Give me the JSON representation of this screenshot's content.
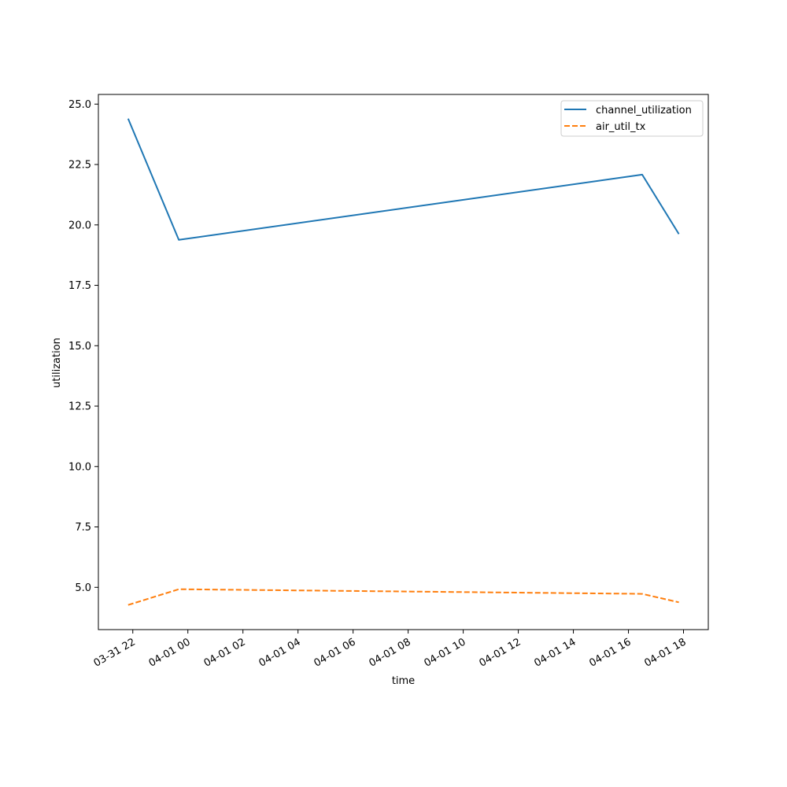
{
  "chart_data": {
    "type": "line",
    "title": "",
    "xlabel": "time",
    "ylabel": "utilization",
    "x": [
      "03-31 21:50",
      "03-31 23:40",
      "04-01 16:30",
      "04-01 17:50"
    ],
    "x_ticks": [
      "03-31 22",
      "04-01 00",
      "04-01 02",
      "04-01 04",
      "04-01 06",
      "04-01 08",
      "04-01 10",
      "04-01 12",
      "04-01 14",
      "04-01 16",
      "04-01 18"
    ],
    "x_tick_hours": [
      22,
      24,
      26,
      28,
      30,
      32,
      34,
      36,
      38,
      40,
      42
    ],
    "x_hours": [
      21.83,
      23.67,
      40.5,
      41.83
    ],
    "xlim_hours": [
      20.75,
      42.9
    ],
    "y_ticks": [
      "5.0",
      "7.5",
      "10.0",
      "12.5",
      "15.0",
      "17.5",
      "20.0",
      "22.5",
      "25.0"
    ],
    "y_tick_values": [
      5.0,
      7.5,
      10.0,
      12.5,
      15.0,
      17.5,
      20.0,
      22.5,
      25.0
    ],
    "ylim": [
      3.25,
      25.4
    ],
    "grid": false,
    "legend_position": "top-right",
    "series": [
      {
        "name": "channel_utilization",
        "values": [
          24.4,
          19.38,
          22.08,
          19.62
        ],
        "color": "#1f77b4",
        "style": "solid"
      },
      {
        "name": "air_util_tx",
        "values": [
          4.27,
          4.92,
          4.73,
          4.38
        ],
        "color": "#ff7f0e",
        "style": "dashed"
      }
    ]
  }
}
